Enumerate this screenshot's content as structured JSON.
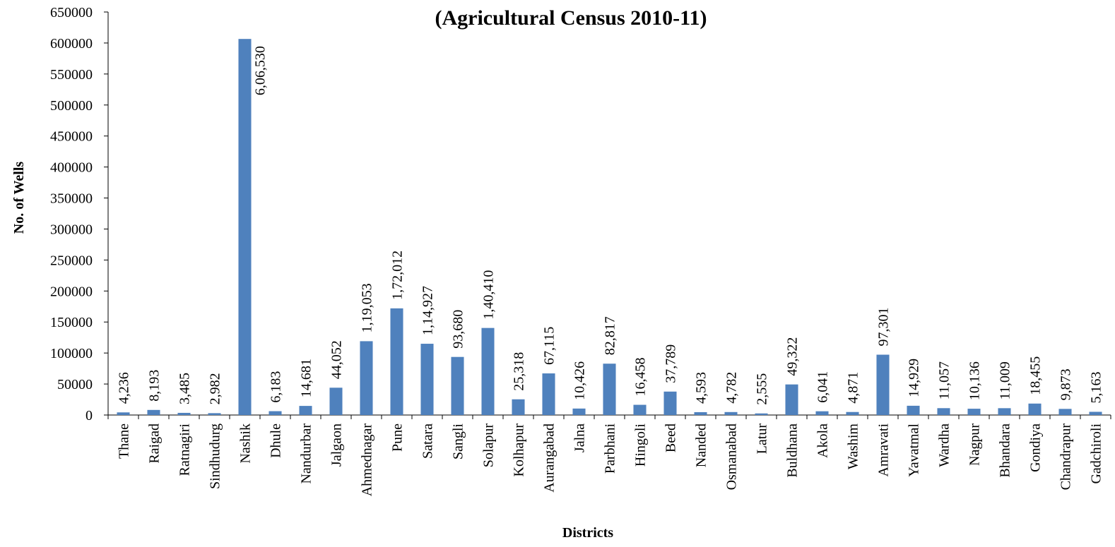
{
  "chart_data": {
    "type": "bar",
    "title": "(Agricultural Census 2010-11)",
    "xlabel": "Districts",
    "ylabel": "No. of Wells",
    "ylim": [
      0,
      650000
    ],
    "yticks": [
      0,
      50000,
      100000,
      150000,
      200000,
      250000,
      300000,
      350000,
      400000,
      450000,
      500000,
      550000,
      600000,
      650000
    ],
    "grid": false,
    "bar_color": "#4F81BD",
    "categories": [
      "Thane",
      "Raigad",
      "Ratnagiri",
      "Sindhudurg",
      "Nashik",
      "Dhule",
      "Nandurbar",
      "Jalgaon",
      "Ahmednagar",
      "Pune",
      "Satara",
      "Sangli",
      "Solapur",
      "Kolhapur",
      "Aurangabad",
      "Jalna",
      "Parbhani",
      "Hingoli",
      "Beed",
      "Nanded",
      "Osmanabad",
      "Latur",
      "Buldhana",
      "Akola",
      "Washim",
      "Amravati",
      "Yavatmal",
      "Wardha",
      "Nagpur",
      "Bhandara",
      "Gondiya",
      "Chandrapur",
      "Gadchiroli"
    ],
    "values": [
      4236,
      8193,
      3485,
      2982,
      606530,
      6183,
      14681,
      44052,
      119053,
      172012,
      114927,
      93680,
      140410,
      25318,
      67115,
      10426,
      82817,
      16458,
      37789,
      4593,
      4782,
      2555,
      49322,
      6041,
      4871,
      97301,
      14929,
      11057,
      10136,
      11009,
      18455,
      9873,
      5163
    ],
    "data_labels": [
      "4,236",
      "8,193",
      "3,485",
      "2,982",
      "6,06,530",
      "6,183",
      "14,681",
      "44,052",
      "1,19,053",
      "1,72,012",
      "1,14,927",
      "93,680",
      "1,40,410",
      "25,318",
      "67,115",
      "10,426",
      "82,817",
      "16,458",
      "37,789",
      "4,593",
      "4,782",
      "2,555",
      "49,322",
      "6,041",
      "4,871",
      "97,301",
      "14,929",
      "11,057",
      "10,136",
      "11,009",
      "18,455",
      "9,873",
      "5,163"
    ]
  }
}
